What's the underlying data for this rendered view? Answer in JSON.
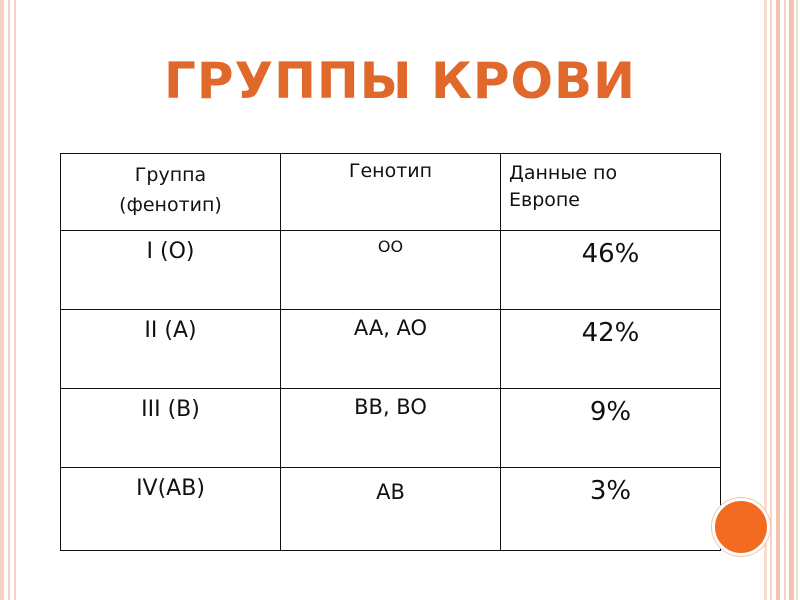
{
  "slide": {
    "title": "ГРУППЫ КРОВИ",
    "accent_color": "#e1682b",
    "frame_color": "#f6d2c4"
  },
  "table": {
    "headers": {
      "group_line1": "Группа",
      "group_line2": "(фенотип)",
      "genotype": "Генотип",
      "europe_line1": "Данные по",
      "europe_line2": "Европе"
    },
    "rows": [
      {
        "group": "I  (O)",
        "genotype": "OO",
        "europe": "46%"
      },
      {
        "group": "II  (A)",
        "genotype": "AA, AO",
        "europe": "42%"
      },
      {
        "group": "III (B)",
        "genotype": "BB, BO",
        "europe": "9%"
      },
      {
        "group": "IV(AB)",
        "genotype": "AB",
        "europe": "3%"
      }
    ]
  }
}
